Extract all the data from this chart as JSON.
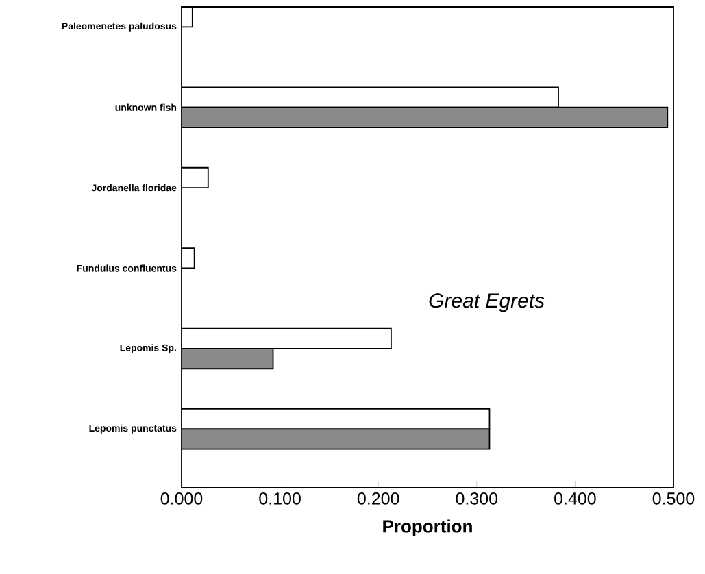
{
  "chart_data": {
    "type": "bar",
    "orientation": "horizontal",
    "xlabel": "Proportion",
    "annotations": [
      "Great Egrets"
    ],
    "categories": [
      "Paleomenetes paludosus",
      "unknown fish",
      "Jordanella floridae",
      "Fundulus confluentus",
      "Lepomis Sp.",
      "Lepomis punctatus"
    ],
    "series": [
      {
        "color": "#ffffff",
        "values": [
          0.011,
          0.383,
          0.027,
          0.013,
          0.213,
          0.313
        ]
      },
      {
        "color": "#8a8a8a",
        "values": [
          null,
          0.494,
          null,
          null,
          0.093,
          0.313
        ]
      }
    ],
    "xlim": [
      0,
      0.5
    ],
    "xticks": [
      {
        "value": 0,
        "label": "0.000"
      },
      {
        "value": 0.1,
        "label": "0.100"
      },
      {
        "value": 0.2,
        "label": "0.200"
      },
      {
        "value": 0.3,
        "label": "0.300"
      },
      {
        "value": 0.4,
        "label": "0.400"
      },
      {
        "value": 0.5,
        "label": "0.500"
      }
    ],
    "grid": false
  }
}
